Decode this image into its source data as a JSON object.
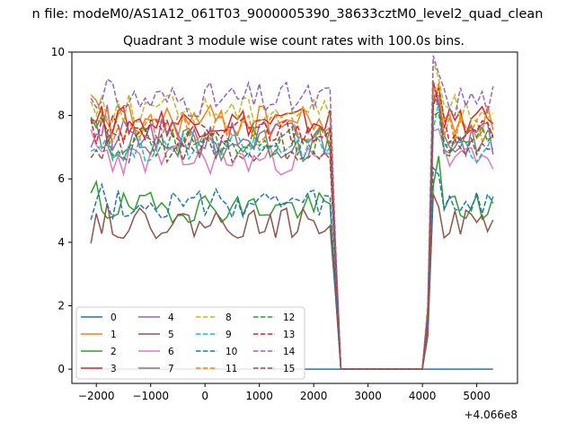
{
  "suptitle": "n file: modeM0/AS1A12_061T03_9000005390_38633cztM0_level2_quad_clean",
  "chart_data": {
    "type": "line",
    "title": "Quadrant 3 module wise count rates with 100.0s bins.",
    "xlabel": "",
    "ylabel": "",
    "x_offset_label": "+4.066e8",
    "xlim": [
      -2450,
      5750
    ],
    "ylim": [
      -0.45,
      10.0
    ],
    "xticks": [
      -2000,
      -1000,
      0,
      1000,
      2000,
      3000,
      4000,
      5000
    ],
    "xtick_labels": [
      "−2000",
      "−1000",
      "0",
      "1000",
      "2000",
      "3000",
      "4000",
      "5000"
    ],
    "yticks": [
      0,
      2,
      4,
      6,
      8,
      10
    ],
    "ytick_labels": [
      "0",
      "2",
      "4",
      "6",
      "8",
      "10"
    ],
    "grid": false,
    "legend_position": "lower-left",
    "legend_columns": 4,
    "x_range": [
      -2100,
      5300
    ],
    "x_step": 100,
    "gap": [
      2500,
      4000
    ],
    "series": [
      {
        "name": "0",
        "color": "#1f77b4",
        "dash": "solid",
        "base": 0.0,
        "spread": 0.0,
        "seed": 0
      },
      {
        "name": "1",
        "color": "#ff7f0e",
        "dash": "solid",
        "base": 7.8,
        "spread": 0.35,
        "seed": 11
      },
      {
        "name": "2",
        "color": "#2ca02c",
        "dash": "solid",
        "base": 5.1,
        "spread": 0.3,
        "seed": 12
      },
      {
        "name": "3",
        "color": "#d62728",
        "dash": "solid",
        "base": 7.8,
        "spread": 0.3,
        "seed": 13
      },
      {
        "name": "4",
        "color": "#9467bd",
        "dash": "solid",
        "base": 7.3,
        "spread": 0.35,
        "seed": 14
      },
      {
        "name": "5",
        "color": "#8c564b",
        "dash": "solid",
        "base": 4.6,
        "spread": 0.3,
        "seed": 15
      },
      {
        "name": "6",
        "color": "#e377c2",
        "dash": "solid",
        "base": 6.6,
        "spread": 0.3,
        "seed": 16
      },
      {
        "name": "7",
        "color": "#7f7f7f",
        "dash": "solid",
        "base": 7.1,
        "spread": 0.35,
        "seed": 17
      },
      {
        "name": "8",
        "color": "#bcbd22",
        "dash": "dashed",
        "base": 8.2,
        "spread": 0.3,
        "seed": 18
      },
      {
        "name": "9",
        "color": "#17becf",
        "dash": "dashed",
        "base": 7.0,
        "spread": 0.3,
        "seed": 19
      },
      {
        "name": "10",
        "color": "#1f77b4",
        "dash": "dashed",
        "base": 5.2,
        "spread": 0.3,
        "seed": 20
      },
      {
        "name": "11",
        "color": "#ff7f0e",
        "dash": "dashed",
        "base": 7.6,
        "spread": 0.3,
        "seed": 21
      },
      {
        "name": "12",
        "color": "#2ca02c",
        "dash": "dashed",
        "base": 7.2,
        "spread": 0.3,
        "seed": 22
      },
      {
        "name": "13",
        "color": "#d62728",
        "dash": "dashed",
        "base": 7.5,
        "spread": 0.3,
        "seed": 23
      },
      {
        "name": "14",
        "color": "#9467bd",
        "dash": "dashed",
        "base": 8.5,
        "spread": 0.35,
        "seed": 24
      },
      {
        "name": "15",
        "color": "#8c564b",
        "dash": "dashed",
        "base": 7.0,
        "spread": 0.3,
        "seed": 25
      }
    ]
  }
}
